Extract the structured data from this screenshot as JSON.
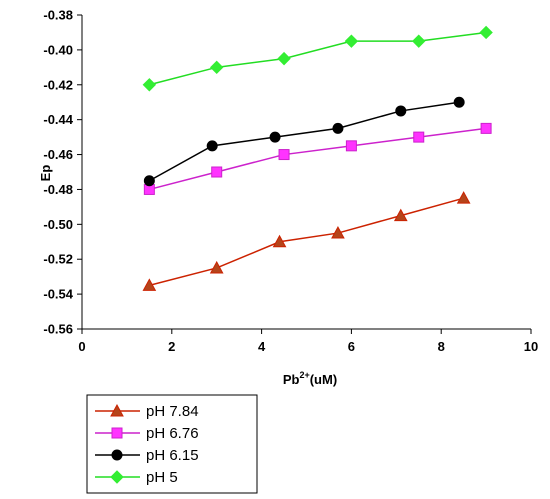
{
  "chart_data": {
    "type": "line",
    "title": "",
    "ylabel": "Ep",
    "xlabel": {
      "base": "Pb",
      "superscript": "2+",
      "suffix": "(uM)"
    },
    "xlim": [
      0,
      10
    ],
    "ylim": [
      -0.56,
      -0.38
    ],
    "xticks": [
      {
        "value": 0,
        "label": "0"
      },
      {
        "value": 2,
        "label": "2"
      },
      {
        "value": 4,
        "label": "4"
      },
      {
        "value": 6,
        "label": "6"
      },
      {
        "value": 8,
        "label": "8"
      },
      {
        "value": 10,
        "label": "10"
      }
    ],
    "yticks": [
      {
        "value": -0.38,
        "label": "-0.38"
      },
      {
        "value": -0.4,
        "label": "-0.40"
      },
      {
        "value": -0.42,
        "label": "-0.42"
      },
      {
        "value": -0.44,
        "label": "-0.44"
      },
      {
        "value": -0.46,
        "label": "-0.46"
      },
      {
        "value": -0.48,
        "label": "-0.48"
      },
      {
        "value": -0.5,
        "label": "-0.50"
      },
      {
        "value": -0.52,
        "label": "-0.52"
      },
      {
        "value": -0.54,
        "label": "-0.54"
      },
      {
        "value": -0.56,
        "label": "-0.56"
      }
    ],
    "grid": false,
    "legend_position": "bottom-left",
    "series": [
      {
        "name": "pH 7.84",
        "color": "#cc2200",
        "fill": "#b5451b",
        "marker": "triangle",
        "x": [
          1.5,
          3.0,
          4.4,
          5.7,
          7.1,
          8.5
        ],
        "y": [
          -0.535,
          -0.525,
          -0.51,
          -0.505,
          -0.495,
          -0.485
        ]
      },
      {
        "name": "pH 6.76",
        "color": "#cc22cc",
        "fill": "#ff33ff",
        "marker": "square",
        "x": [
          1.5,
          3.0,
          4.5,
          6.0,
          7.5,
          9.0
        ],
        "y": [
          -0.48,
          -0.47,
          -0.46,
          -0.455,
          -0.45,
          -0.445
        ]
      },
      {
        "name": "pH 6.15",
        "color": "#000000",
        "fill": "#000000",
        "marker": "circle",
        "x": [
          1.5,
          2.9,
          4.3,
          5.7,
          7.1,
          8.4
        ],
        "y": [
          -0.475,
          -0.455,
          -0.45,
          -0.445,
          -0.435,
          -0.43
        ]
      },
      {
        "name": "pH 5",
        "color": "#22dd22",
        "fill": "#33ee33",
        "marker": "diamond",
        "x": [
          1.5,
          3.0,
          4.5,
          6.0,
          7.5,
          9.0
        ],
        "y": [
          -0.42,
          -0.41,
          -0.405,
          -0.395,
          -0.395,
          -0.39
        ]
      }
    ]
  }
}
